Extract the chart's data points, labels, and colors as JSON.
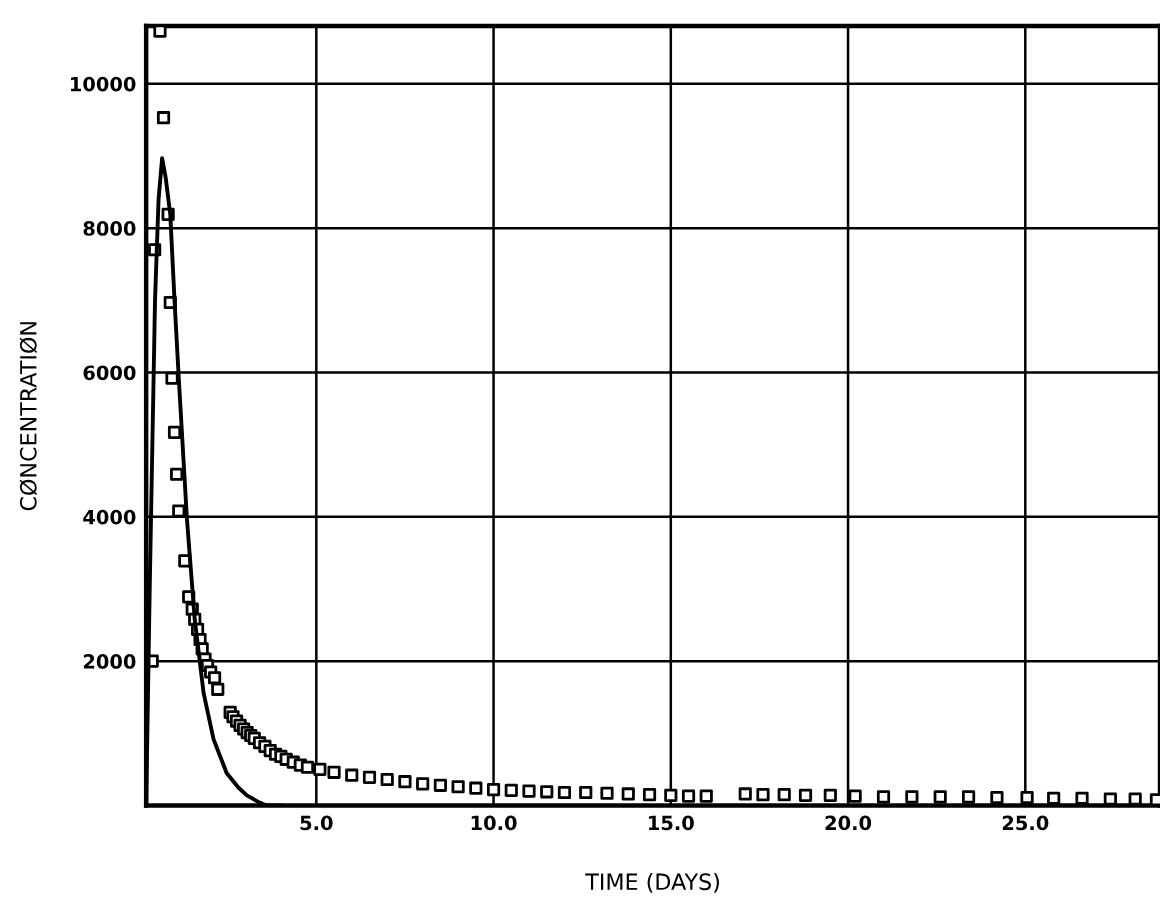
{
  "chart_data": {
    "type": "scatter",
    "xlabel": "TIME (DAYS)",
    "ylabel": "CØNCENTRATIØN",
    "xlim": [
      0.2,
      28.8
    ],
    "ylim": [
      0,
      10800
    ],
    "xticks": [
      {
        "value": 5,
        "label": "5.0"
      },
      {
        "value": 10,
        "label": "10.0"
      },
      {
        "value": 15,
        "label": "15.0"
      },
      {
        "value": 20,
        "label": "20.0"
      },
      {
        "value": 25,
        "label": "25.0"
      }
    ],
    "yticks": [
      2000,
      4000,
      6000,
      8000,
      10000
    ],
    "grid": true,
    "series": [
      {
        "marker": "square",
        "color": "#000000",
        "x": [
          0.37,
          0.44,
          0.59,
          0.69,
          0.82,
          0.88,
          0.93,
          1.0,
          1.06,
          1.12,
          1.29,
          1.4,
          1.5,
          1.57,
          1.65,
          1.72,
          1.78,
          1.86,
          1.93,
          2.02,
          2.13,
          2.22,
          2.57,
          2.65,
          2.75,
          2.85,
          2.95,
          3.05,
          3.15,
          3.25,
          3.4,
          3.55,
          3.7,
          3.85,
          4.0,
          4.15,
          4.35,
          4.55,
          4.75,
          5.1,
          5.5,
          6.0,
          6.5,
          7.0,
          7.5,
          8.0,
          8.5,
          9.0,
          9.5,
          10.0,
          10.5,
          11.0,
          11.5,
          12.0,
          12.6,
          13.2,
          13.8,
          14.4,
          15.0,
          15.5,
          16.0,
          17.1,
          17.6,
          18.2,
          18.8,
          19.5,
          20.2,
          21.0,
          21.8,
          22.6,
          23.4,
          24.2,
          25.05,
          25.8,
          26.6,
          27.4,
          28.1,
          28.7
        ],
        "values": [
          2000,
          7700,
          10730,
          9530,
          8190,
          6970,
          5920,
          5170,
          4590,
          4080,
          3390,
          2890,
          2720,
          2580,
          2440,
          2300,
          2170,
          2030,
          1940,
          1850,
          1770,
          1610,
          1290,
          1230,
          1170,
          1110,
          1060,
          1010,
          970,
          930,
          870,
          820,
          760,
          710,
          680,
          640,
          600,
          560,
          530,
          500,
          460,
          420,
          390,
          360,
          330,
          300,
          280,
          260,
          240,
          220,
          210,
          200,
          190,
          180,
          180,
          170,
          160,
          150,
          140,
          130,
          130,
          160,
          150,
          150,
          140,
          140,
          130,
          120,
          120,
          120,
          120,
          110,
          110,
          100,
          100,
          90,
          90,
          80
        ]
      },
      {
        "type": "line",
        "color": "#000000",
        "x": [
          0.2,
          0.3,
          0.45,
          0.55,
          0.65,
          0.75,
          0.88,
          1.0,
          1.12,
          1.35,
          1.57,
          1.82,
          2.1,
          2.47,
          2.8,
          3.04,
          3.4,
          3.6,
          4.0
        ],
        "values": [
          0,
          3000,
          7000,
          8400,
          8970,
          8700,
          8190,
          7000,
          5920,
          3970,
          2580,
          1560,
          920,
          450,
          250,
          140,
          40,
          0,
          0
        ]
      }
    ]
  }
}
